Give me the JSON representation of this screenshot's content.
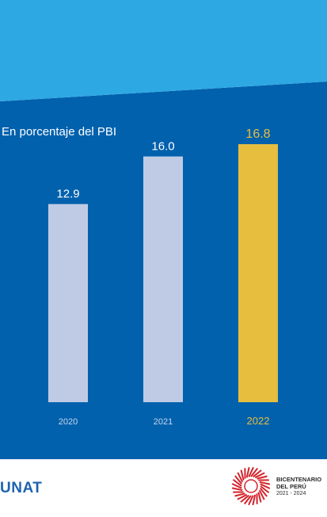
{
  "header": {
    "subtitle": "En porcentaje del PBI"
  },
  "footer": {
    "logo_text": "UNAT",
    "bicentenario": {
      "line1": "BICENTENARIO",
      "line2": "DEL PERÚ",
      "line3": "2021 - 2024"
    }
  },
  "colors": {
    "top_band": "#2ea8e2",
    "panel": "#0161ad",
    "bar_default": "#bfcbe5",
    "bar_highlight": "#e8be3f",
    "label_default": "#ffffff",
    "label_highlight": "#e8be3f",
    "seal_red": "#d3232a"
  },
  "chart_data": {
    "type": "bar",
    "title": "",
    "subtitle": "En porcentaje del PBI",
    "categories": [
      "2020",
      "2021",
      "2022"
    ],
    "values": [
      12.9,
      16.0,
      16.8
    ],
    "value_labels": [
      "12.9",
      "16.0",
      "16.8"
    ],
    "highlight": "2022",
    "grid": false,
    "legend": "none"
  }
}
